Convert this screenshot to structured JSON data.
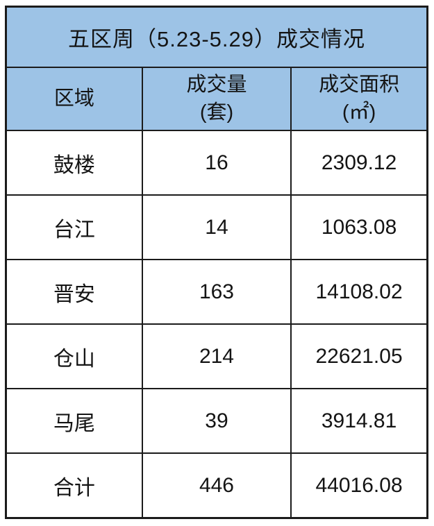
{
  "chart_data": {
    "type": "table",
    "title": "五区周（5.23-5.29）成交情况",
    "columns": [
      {
        "label": "区域",
        "unit": ""
      },
      {
        "label": "成交量",
        "unit": "(套)"
      },
      {
        "label": "成交面积",
        "unit": "(㎡)"
      }
    ],
    "rows": [
      [
        "鼓楼",
        "16",
        "2309.12"
      ],
      [
        "台江",
        "14",
        "1063.08"
      ],
      [
        "晋安",
        "163",
        "14108.02"
      ],
      [
        "仓山",
        "214",
        "22621.05"
      ],
      [
        "马尾",
        "39",
        "3914.81"
      ],
      [
        "合计",
        "446",
        "44016.08"
      ]
    ],
    "totals_row_label": "合计",
    "colors": {
      "header_bg": "#9DC3E6",
      "border": "#1b1b1b",
      "text": "#141414",
      "row_bg": "#ffffff"
    }
  }
}
